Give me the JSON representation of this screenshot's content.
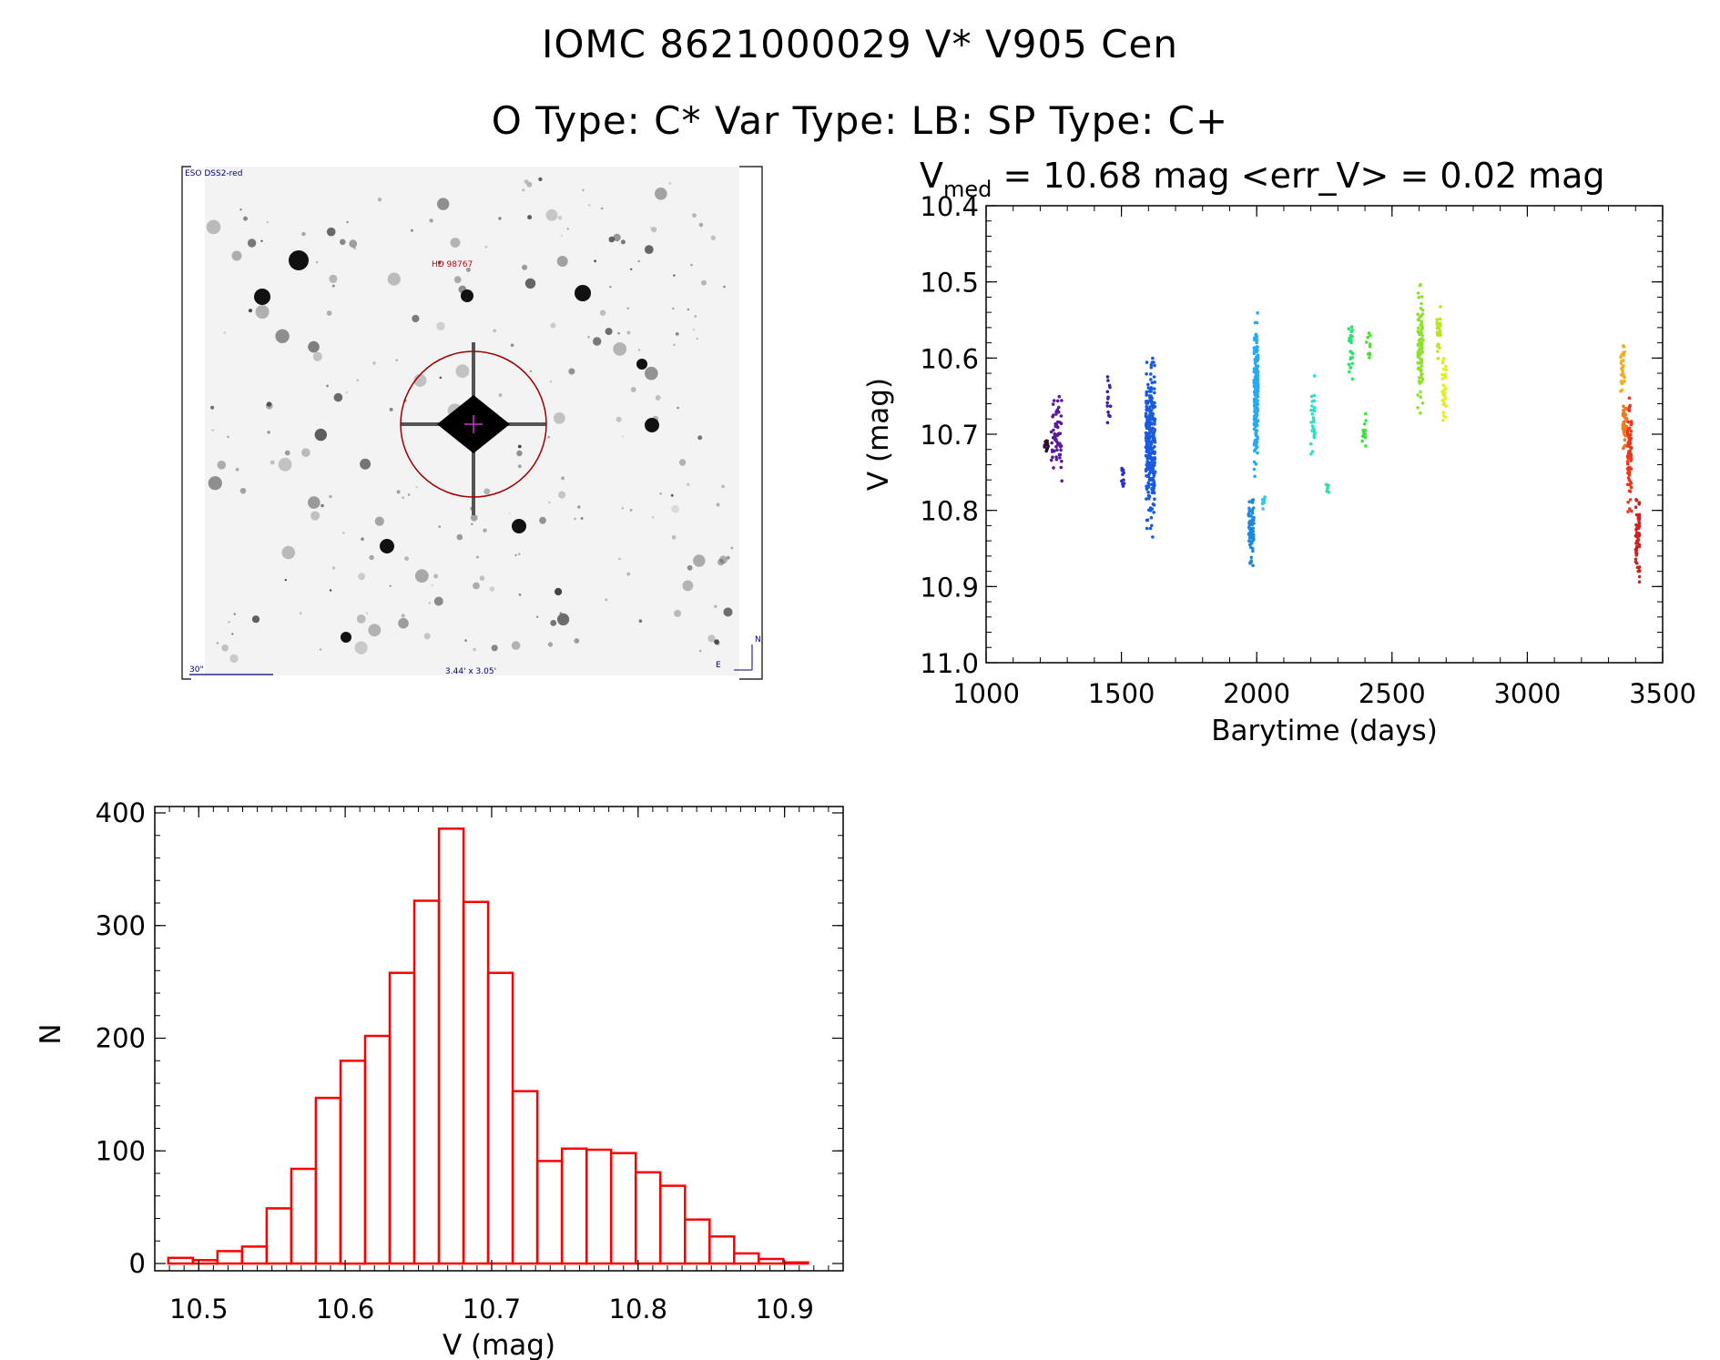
{
  "header": {
    "line1": "IOMC 8621000029    V* V905 Cen",
    "line2": "O Type: C*  Var Type: LB:  SP Type: C+"
  },
  "finder": {
    "survey_label": "ESO DSS2-red",
    "target_label": "HD 98767",
    "scale_label": "30\"",
    "fov_label": "3.44' x 3.05'",
    "north_label": "N",
    "east_label": "E"
  },
  "chart_data": [
    {
      "type": "scatter",
      "title_prefix": "V",
      "title_sub": "med",
      "title_rest": " = 10.68 mag <err_V> = 0.02 mag",
      "xlabel": "Barytime (days)",
      "ylabel": "V (mag)",
      "xlim": [
        1000,
        3500
      ],
      "ylim": [
        10.4,
        11.0
      ],
      "y_inverted": true,
      "xticks": [
        1000,
        1500,
        2000,
        2500,
        3000,
        3500
      ],
      "yticks": [
        "10.4",
        "10.5",
        "10.6",
        "10.7",
        "10.8",
        "10.9",
        "11.0"
      ],
      "clusters": [
        {
          "x0": 1215,
          "x1": 1230,
          "ymin": 10.7,
          "ymax": 10.73,
          "n": 14,
          "color": "#2a1030"
        },
        {
          "x0": 1240,
          "x1": 1280,
          "ymin": 10.63,
          "ymax": 10.77,
          "n": 60,
          "color": "#5a1a9a"
        },
        {
          "x0": 1448,
          "x1": 1460,
          "ymin": 10.61,
          "ymax": 10.71,
          "n": 14,
          "color": "#3a1fb0"
        },
        {
          "x0": 1500,
          "x1": 1510,
          "ymin": 10.74,
          "ymax": 10.78,
          "n": 10,
          "color": "#2a30d0"
        },
        {
          "x0": 1590,
          "x1": 1625,
          "ymin": 10.58,
          "ymax": 10.85,
          "n": 260,
          "color": "#1a5ae0"
        },
        {
          "x0": 1970,
          "x1": 1990,
          "ymin": 10.76,
          "ymax": 10.89,
          "n": 80,
          "color": "#1e88e0"
        },
        {
          "x0": 1990,
          "x1": 2005,
          "ymin": 10.52,
          "ymax": 10.77,
          "n": 200,
          "color": "#28aaf0"
        },
        {
          "x0": 2020,
          "x1": 2030,
          "ymin": 10.78,
          "ymax": 10.8,
          "n": 8,
          "color": "#30c8f0"
        },
        {
          "x0": 2200,
          "x1": 2215,
          "ymin": 10.61,
          "ymax": 10.76,
          "n": 30,
          "color": "#30e0c0"
        },
        {
          "x0": 2255,
          "x1": 2270,
          "ymin": 10.76,
          "ymax": 10.78,
          "n": 6,
          "color": "#30e0a0"
        },
        {
          "x0": 2340,
          "x1": 2355,
          "ymin": 10.54,
          "ymax": 10.64,
          "n": 24,
          "color": "#30e070"
        },
        {
          "x0": 2390,
          "x1": 2405,
          "ymin": 10.66,
          "ymax": 10.74,
          "n": 14,
          "color": "#40e040"
        },
        {
          "x0": 2405,
          "x1": 2420,
          "ymin": 10.56,
          "ymax": 10.62,
          "n": 10,
          "color": "#50e030"
        },
        {
          "x0": 2595,
          "x1": 2615,
          "ymin": 10.48,
          "ymax": 10.69,
          "n": 90,
          "color": "#90e030"
        },
        {
          "x0": 2665,
          "x1": 2680,
          "ymin": 10.52,
          "ymax": 10.61,
          "n": 30,
          "color": "#b8e820"
        },
        {
          "x0": 2685,
          "x1": 2700,
          "ymin": 10.58,
          "ymax": 10.7,
          "n": 30,
          "color": "#e0f020"
        },
        {
          "x0": 3345,
          "x1": 3360,
          "ymin": 10.57,
          "ymax": 10.66,
          "n": 30,
          "color": "#f0b020"
        },
        {
          "x0": 3352,
          "x1": 3368,
          "ymin": 10.64,
          "ymax": 10.74,
          "n": 40,
          "color": "#f07a20"
        },
        {
          "x0": 3370,
          "x1": 3385,
          "ymin": 10.63,
          "ymax": 10.82,
          "n": 80,
          "color": "#e83a20"
        },
        {
          "x0": 3400,
          "x1": 3415,
          "ymin": 10.77,
          "ymax": 10.91,
          "n": 60,
          "color": "#d02020"
        }
      ]
    },
    {
      "type": "bar",
      "xlabel": "V (mag)",
      "ylabel": "N",
      "xlim": [
        10.47,
        10.94
      ],
      "ylim": [
        0,
        400
      ],
      "xticks": [
        "10.5",
        "10.6",
        "10.7",
        "10.8",
        "10.9"
      ],
      "yticks": [
        "0",
        "100",
        "200",
        "300",
        "400"
      ],
      "bin_width": 0.0168,
      "bin_starts": [
        10.4792,
        10.496,
        10.5128,
        10.5296,
        10.5464,
        10.5632,
        10.58,
        10.5968,
        10.6136,
        10.6304,
        10.6472,
        10.664,
        10.6808,
        10.6976,
        10.7144,
        10.7312,
        10.748,
        10.7648,
        10.7816,
        10.7984,
        10.8152,
        10.832,
        10.8488,
        10.8656,
        10.8824,
        10.8992
      ],
      "values": [
        5,
        3,
        11,
        15,
        49,
        84,
        147,
        180,
        202,
        258,
        322,
        386,
        321,
        258,
        153,
        91,
        102,
        101,
        98,
        81,
        69,
        39,
        24,
        9,
        4,
        1
      ],
      "color": "#ff0000"
    }
  ]
}
